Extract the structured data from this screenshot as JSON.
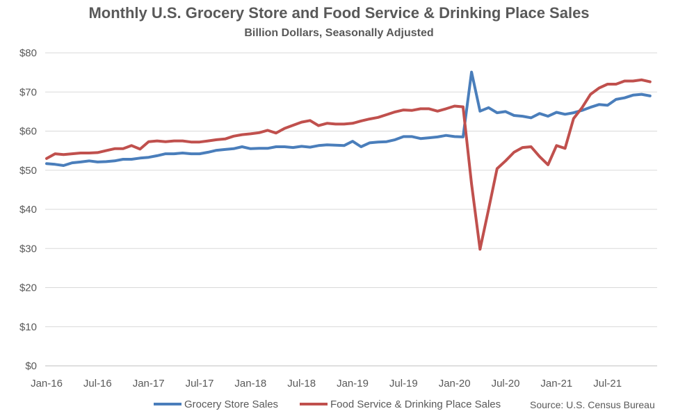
{
  "chart_data": {
    "type": "line",
    "title": "Monthly U.S. Grocery Store and Food Service & Drinking Place Sales",
    "subtitle": "Billion Dollars, Seasonally Adjusted",
    "xlabel": "",
    "ylabel": "",
    "ylim": [
      0,
      80
    ],
    "yticks": [
      "$0",
      "$10",
      "$20",
      "$30",
      "$40",
      "$50",
      "$60",
      "$70",
      "$80"
    ],
    "xticks": [
      "Jan-16",
      "Jul-16",
      "Jan-17",
      "Jul-17",
      "Jan-18",
      "Jul-18",
      "Jan-19",
      "Jul-19",
      "Jan-20",
      "Jul-20",
      "Jan-21",
      "Jul-21"
    ],
    "x": [
      "2016-01",
      "2016-02",
      "2016-03",
      "2016-04",
      "2016-05",
      "2016-06",
      "2016-07",
      "2016-08",
      "2016-09",
      "2016-10",
      "2016-11",
      "2016-12",
      "2017-01",
      "2017-02",
      "2017-03",
      "2017-04",
      "2017-05",
      "2017-06",
      "2017-07",
      "2017-08",
      "2017-09",
      "2017-10",
      "2017-11",
      "2017-12",
      "2018-01",
      "2018-02",
      "2018-03",
      "2018-04",
      "2018-05",
      "2018-06",
      "2018-07",
      "2018-08",
      "2018-09",
      "2018-10",
      "2018-11",
      "2018-12",
      "2019-01",
      "2019-02",
      "2019-03",
      "2019-04",
      "2019-05",
      "2019-06",
      "2019-07",
      "2019-08",
      "2019-09",
      "2019-10",
      "2019-11",
      "2019-12",
      "2020-01",
      "2020-02",
      "2020-03",
      "2020-04",
      "2020-05",
      "2020-06",
      "2020-07",
      "2020-08",
      "2020-09",
      "2020-10",
      "2020-11",
      "2020-12",
      "2021-01",
      "2021-02",
      "2021-03",
      "2021-04",
      "2021-05",
      "2021-06",
      "2021-07",
      "2021-08",
      "2021-09",
      "2021-10",
      "2021-11",
      "2021-12"
    ],
    "series": [
      {
        "name": "Grocery Store Sales",
        "color": "#4a7ebb",
        "values": [
          51.7,
          51.5,
          51.2,
          51.9,
          52.1,
          52.4,
          52.1,
          52.2,
          52.4,
          52.8,
          52.8,
          53.1,
          53.3,
          53.7,
          54.2,
          54.2,
          54.4,
          54.2,
          54.2,
          54.6,
          55.1,
          55.3,
          55.5,
          56.0,
          55.5,
          55.6,
          55.6,
          56.0,
          56.0,
          55.8,
          56.1,
          55.9,
          56.3,
          56.5,
          56.4,
          56.3,
          57.4,
          56.0,
          57.0,
          57.2,
          57.3,
          57.8,
          58.6,
          58.6,
          58.1,
          58.3,
          58.5,
          58.9,
          58.6,
          58.5,
          75.1,
          65.1,
          66.0,
          64.7,
          65.0,
          64.0,
          63.8,
          63.4,
          64.5,
          63.8,
          64.8,
          64.3,
          64.7,
          65.3,
          66.1,
          66.8,
          66.6,
          68.1,
          68.5,
          69.2,
          69.4,
          69.0
        ]
      },
      {
        "name": "Food Service & Drinking Place Sales",
        "color": "#c0504d",
        "values": [
          53.0,
          54.2,
          54.0,
          54.2,
          54.4,
          54.4,
          54.5,
          55.0,
          55.5,
          55.5,
          56.3,
          55.4,
          57.3,
          57.5,
          57.3,
          57.5,
          57.5,
          57.2,
          57.2,
          57.5,
          57.8,
          58.0,
          58.7,
          59.1,
          59.3,
          59.6,
          60.2,
          59.5,
          60.7,
          61.5,
          62.3,
          62.7,
          61.4,
          62.0,
          61.8,
          61.8,
          62.0,
          62.6,
          63.1,
          63.5,
          64.2,
          64.9,
          65.4,
          65.3,
          65.7,
          65.7,
          65.1,
          65.7,
          66.4,
          66.2,
          46.5,
          29.8,
          40.0,
          50.4,
          52.4,
          54.6,
          55.8,
          56.0,
          53.5,
          51.4,
          56.3,
          55.6,
          63.2,
          66.0,
          69.4,
          71.0,
          72.0,
          72.0,
          72.8,
          72.8,
          73.1,
          72.6
        ]
      }
    ],
    "grid": "horizontal",
    "legend_position": "bottom",
    "source": "Source: U.S. Census Bureau"
  }
}
